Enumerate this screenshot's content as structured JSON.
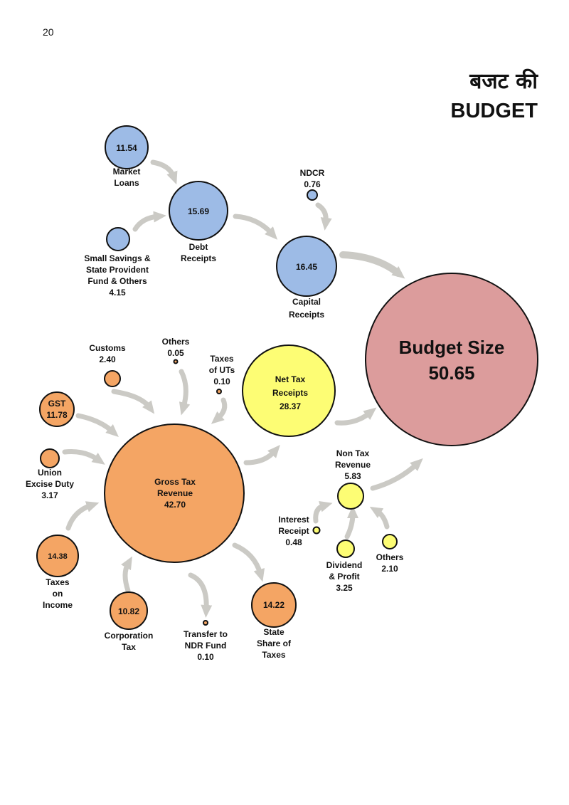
{
  "page_number": "20",
  "title_hindi": "बजट की",
  "title_english": "BUDGET",
  "colors": {
    "capital": "#9dbbe6",
    "tax": "#f4a564",
    "net_tax": "#fdfd74",
    "budget": "#dc9c9c",
    "arrow": "#cbcac5"
  },
  "nodes": {
    "market_loans": {
      "value": "11.54",
      "label": [
        "Market",
        "Loans"
      ]
    },
    "debt_receipts": {
      "value": "15.69",
      "label": [
        "Debt",
        "Receipts"
      ]
    },
    "small_savings": {
      "label": [
        "Small Savings &",
        "State Provident",
        "Fund & Others",
        "4.15"
      ]
    },
    "ndcr": {
      "label": [
        "NDCR",
        "0.76"
      ]
    },
    "capital_receipts": {
      "value": "16.45",
      "label": [
        "Capital",
        "Receipts"
      ]
    },
    "budget_size": {
      "label": "Budget Size",
      "value": "50.65"
    },
    "net_tax_receipts": {
      "label": [
        "Net Tax",
        "Receipts",
        "28.37"
      ]
    },
    "gross_tax_revenue": {
      "label": [
        "Gross Tax",
        "Revenue",
        "42.70"
      ]
    },
    "customs": {
      "label": [
        "Customs",
        "2.40"
      ]
    },
    "others_tax": {
      "label": [
        "Others",
        "0.05"
      ]
    },
    "taxes_of_uts": {
      "label": [
        "Taxes",
        "of UTs",
        "0.10"
      ]
    },
    "gst": {
      "label": [
        "GST",
        "11.78"
      ]
    },
    "union_excise": {
      "label": [
        "Union",
        "Excise Duty",
        "3.17"
      ]
    },
    "taxes_on_income": {
      "value": "14.38",
      "label": [
        "Taxes",
        "on",
        "Income"
      ]
    },
    "corporation_tax": {
      "value": "10.82",
      "label": [
        "Corporation",
        "Tax"
      ]
    },
    "transfer_ndr": {
      "label": [
        "Transfer to",
        "NDR Fund",
        "0.10"
      ]
    },
    "state_share": {
      "value": "14.22",
      "label": [
        "State",
        "Share of",
        "Taxes"
      ]
    },
    "non_tax_revenue": {
      "label": [
        "Non Tax",
        "Revenue",
        "5.83"
      ]
    },
    "interest_receipt": {
      "label": [
        "Interest",
        "Receipt",
        "0.48"
      ]
    },
    "dividend_profit": {
      "label": [
        "Dividend",
        "& Profit",
        "3.25"
      ]
    },
    "others_non_tax": {
      "label": [
        "Others",
        "2.10"
      ]
    }
  }
}
